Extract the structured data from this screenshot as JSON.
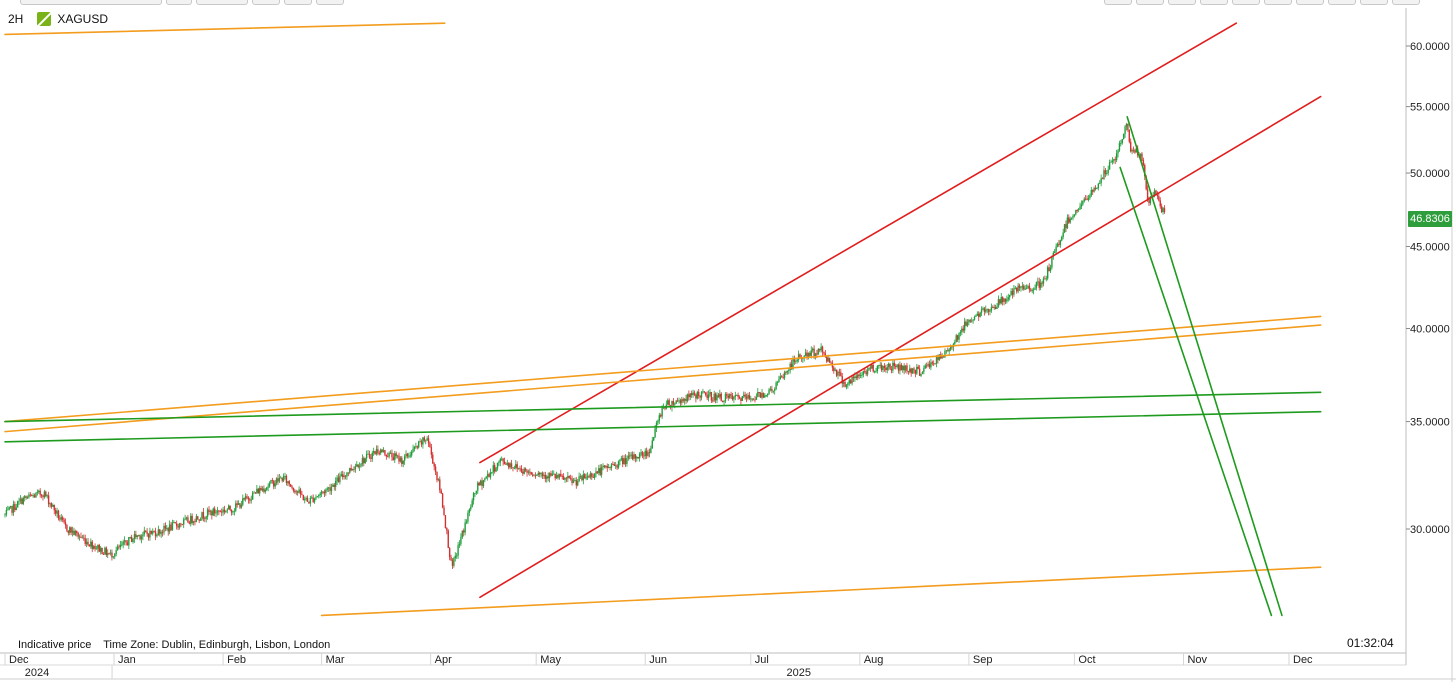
{
  "header": {
    "interval": "2H",
    "symbol": "XAGUSD"
  },
  "footer": {
    "indicative": "Indicative price",
    "timezone": "Time Zone: Dublin, Edinburgh, Lisbon, London",
    "clock": "01:32:04"
  },
  "price_tag": "46.8306",
  "colors": {
    "red": "#e11d1d",
    "orange": "#f39c1d",
    "green": "#1e9b1e",
    "up": "#1f9d3a",
    "down": "#d33030",
    "tag": "#2e9e3c"
  },
  "chart_data": {
    "type": "candlestick",
    "symbol": "XAGUSD",
    "interval": "2H",
    "y_scale": "log",
    "ylim": [
      26.5,
      62.0
    ],
    "y_ticks": [
      "60.0000",
      "55.0000",
      "50.0000",
      "45.0000",
      "40.0000",
      "35.0000",
      "30.0000"
    ],
    "x_tick_labels": [
      "Dec",
      "Jan",
      "Feb",
      "Mar",
      "Apr",
      "May",
      "Jun",
      "Jul",
      "Aug",
      "Sep",
      "Oct",
      "Nov",
      "Dec"
    ],
    "year_labels": [
      "2024",
      "2025"
    ],
    "last_price": 46.8306,
    "price_path": [
      [
        "2024-12-01",
        30.6
      ],
      [
        "2024-12-06",
        31.3
      ],
      [
        "2024-12-12",
        31.6
      ],
      [
        "2024-12-18",
        30.1
      ],
      [
        "2024-12-25",
        29.4
      ],
      [
        "2024-12-31",
        28.9
      ],
      [
        "2025-01-07",
        29.7
      ],
      [
        "2025-01-14",
        29.9
      ],
      [
        "2025-01-21",
        30.3
      ],
      [
        "2025-01-28",
        30.7
      ],
      [
        "2025-02-04",
        30.9
      ],
      [
        "2025-02-11",
        31.7
      ],
      [
        "2025-02-18",
        32.3
      ],
      [
        "2025-02-25",
        31.2
      ],
      [
        "2025-03-03",
        31.8
      ],
      [
        "2025-03-10",
        32.8
      ],
      [
        "2025-03-17",
        33.6
      ],
      [
        "2025-03-24",
        33.1
      ],
      [
        "2025-03-31",
        34.2
      ],
      [
        "2025-04-04",
        31.5
      ],
      [
        "2025-04-07",
        28.3
      ],
      [
        "2025-04-14",
        31.8
      ],
      [
        "2025-04-21",
        33.1
      ],
      [
        "2025-04-28",
        32.6
      ],
      [
        "2025-05-05",
        32.4
      ],
      [
        "2025-05-12",
        32.1
      ],
      [
        "2025-05-19",
        32.6
      ],
      [
        "2025-05-26",
        33.1
      ],
      [
        "2025-06-02",
        33.5
      ],
      [
        "2025-06-06",
        35.8
      ],
      [
        "2025-06-16",
        36.4
      ],
      [
        "2025-06-23",
        36.2
      ],
      [
        "2025-07-01",
        36.2
      ],
      [
        "2025-07-07",
        36.6
      ],
      [
        "2025-07-14",
        38.3
      ],
      [
        "2025-07-21",
        38.8
      ],
      [
        "2025-07-28",
        36.9
      ],
      [
        "2025-08-04",
        37.8
      ],
      [
        "2025-08-11",
        37.9
      ],
      [
        "2025-08-18",
        37.6
      ],
      [
        "2025-08-25",
        38.5
      ],
      [
        "2025-09-01",
        40.5
      ],
      [
        "2025-09-08",
        41.3
      ],
      [
        "2025-09-15",
        42.3
      ],
      [
        "2025-09-22",
        42.6
      ],
      [
        "2025-09-29",
        46.7
      ],
      [
        "2025-10-06",
        48.6
      ],
      [
        "2025-10-13",
        51.3
      ],
      [
        "2025-10-16",
        53.7
      ],
      [
        "2025-10-17",
        51.8
      ],
      [
        "2025-10-20",
        51.3
      ],
      [
        "2025-10-22",
        47.9
      ],
      [
        "2025-10-24",
        48.7
      ],
      [
        "2025-10-27",
        46.8
      ]
    ],
    "trendlines": [
      {
        "color": "red",
        "from": [
          "2025-04-15",
          27.2
        ],
        "to": [
          "2025-12-10",
          55.8
        ]
      },
      {
        "color": "red",
        "from": [
          "2025-04-15",
          33.0
        ],
        "to": [
          "2025-11-16",
          62.0
        ]
      },
      {
        "color": "orange",
        "from": [
          "2024-12-01",
          61.0
        ],
        "to": [
          "2025-04-05",
          62.0
        ]
      },
      {
        "color": "orange",
        "from": [
          "2024-12-01",
          35.0
        ],
        "to": [
          "2025-12-10",
          40.7
        ]
      },
      {
        "color": "orange",
        "from": [
          "2024-12-01",
          34.5
        ],
        "to": [
          "2025-12-10",
          40.2
        ]
      },
      {
        "color": "orange",
        "from": [
          "2025-03-01",
          26.5
        ],
        "to": [
          "2025-12-10",
          28.4
        ]
      },
      {
        "color": "green",
        "from": [
          "2024-12-01",
          35.0
        ],
        "to": [
          "2025-12-10",
          36.5
        ]
      },
      {
        "color": "green",
        "from": [
          "2024-12-01",
          34.0
        ],
        "to": [
          "2025-12-10",
          35.5
        ]
      },
      {
        "color": "green",
        "from": [
          "2025-10-16",
          54.2
        ],
        "to": [
          "2025-11-29",
          26.5
        ]
      },
      {
        "color": "green",
        "from": [
          "2025-10-14",
          50.4
        ],
        "to": [
          "2025-11-26",
          26.5
        ]
      }
    ]
  }
}
